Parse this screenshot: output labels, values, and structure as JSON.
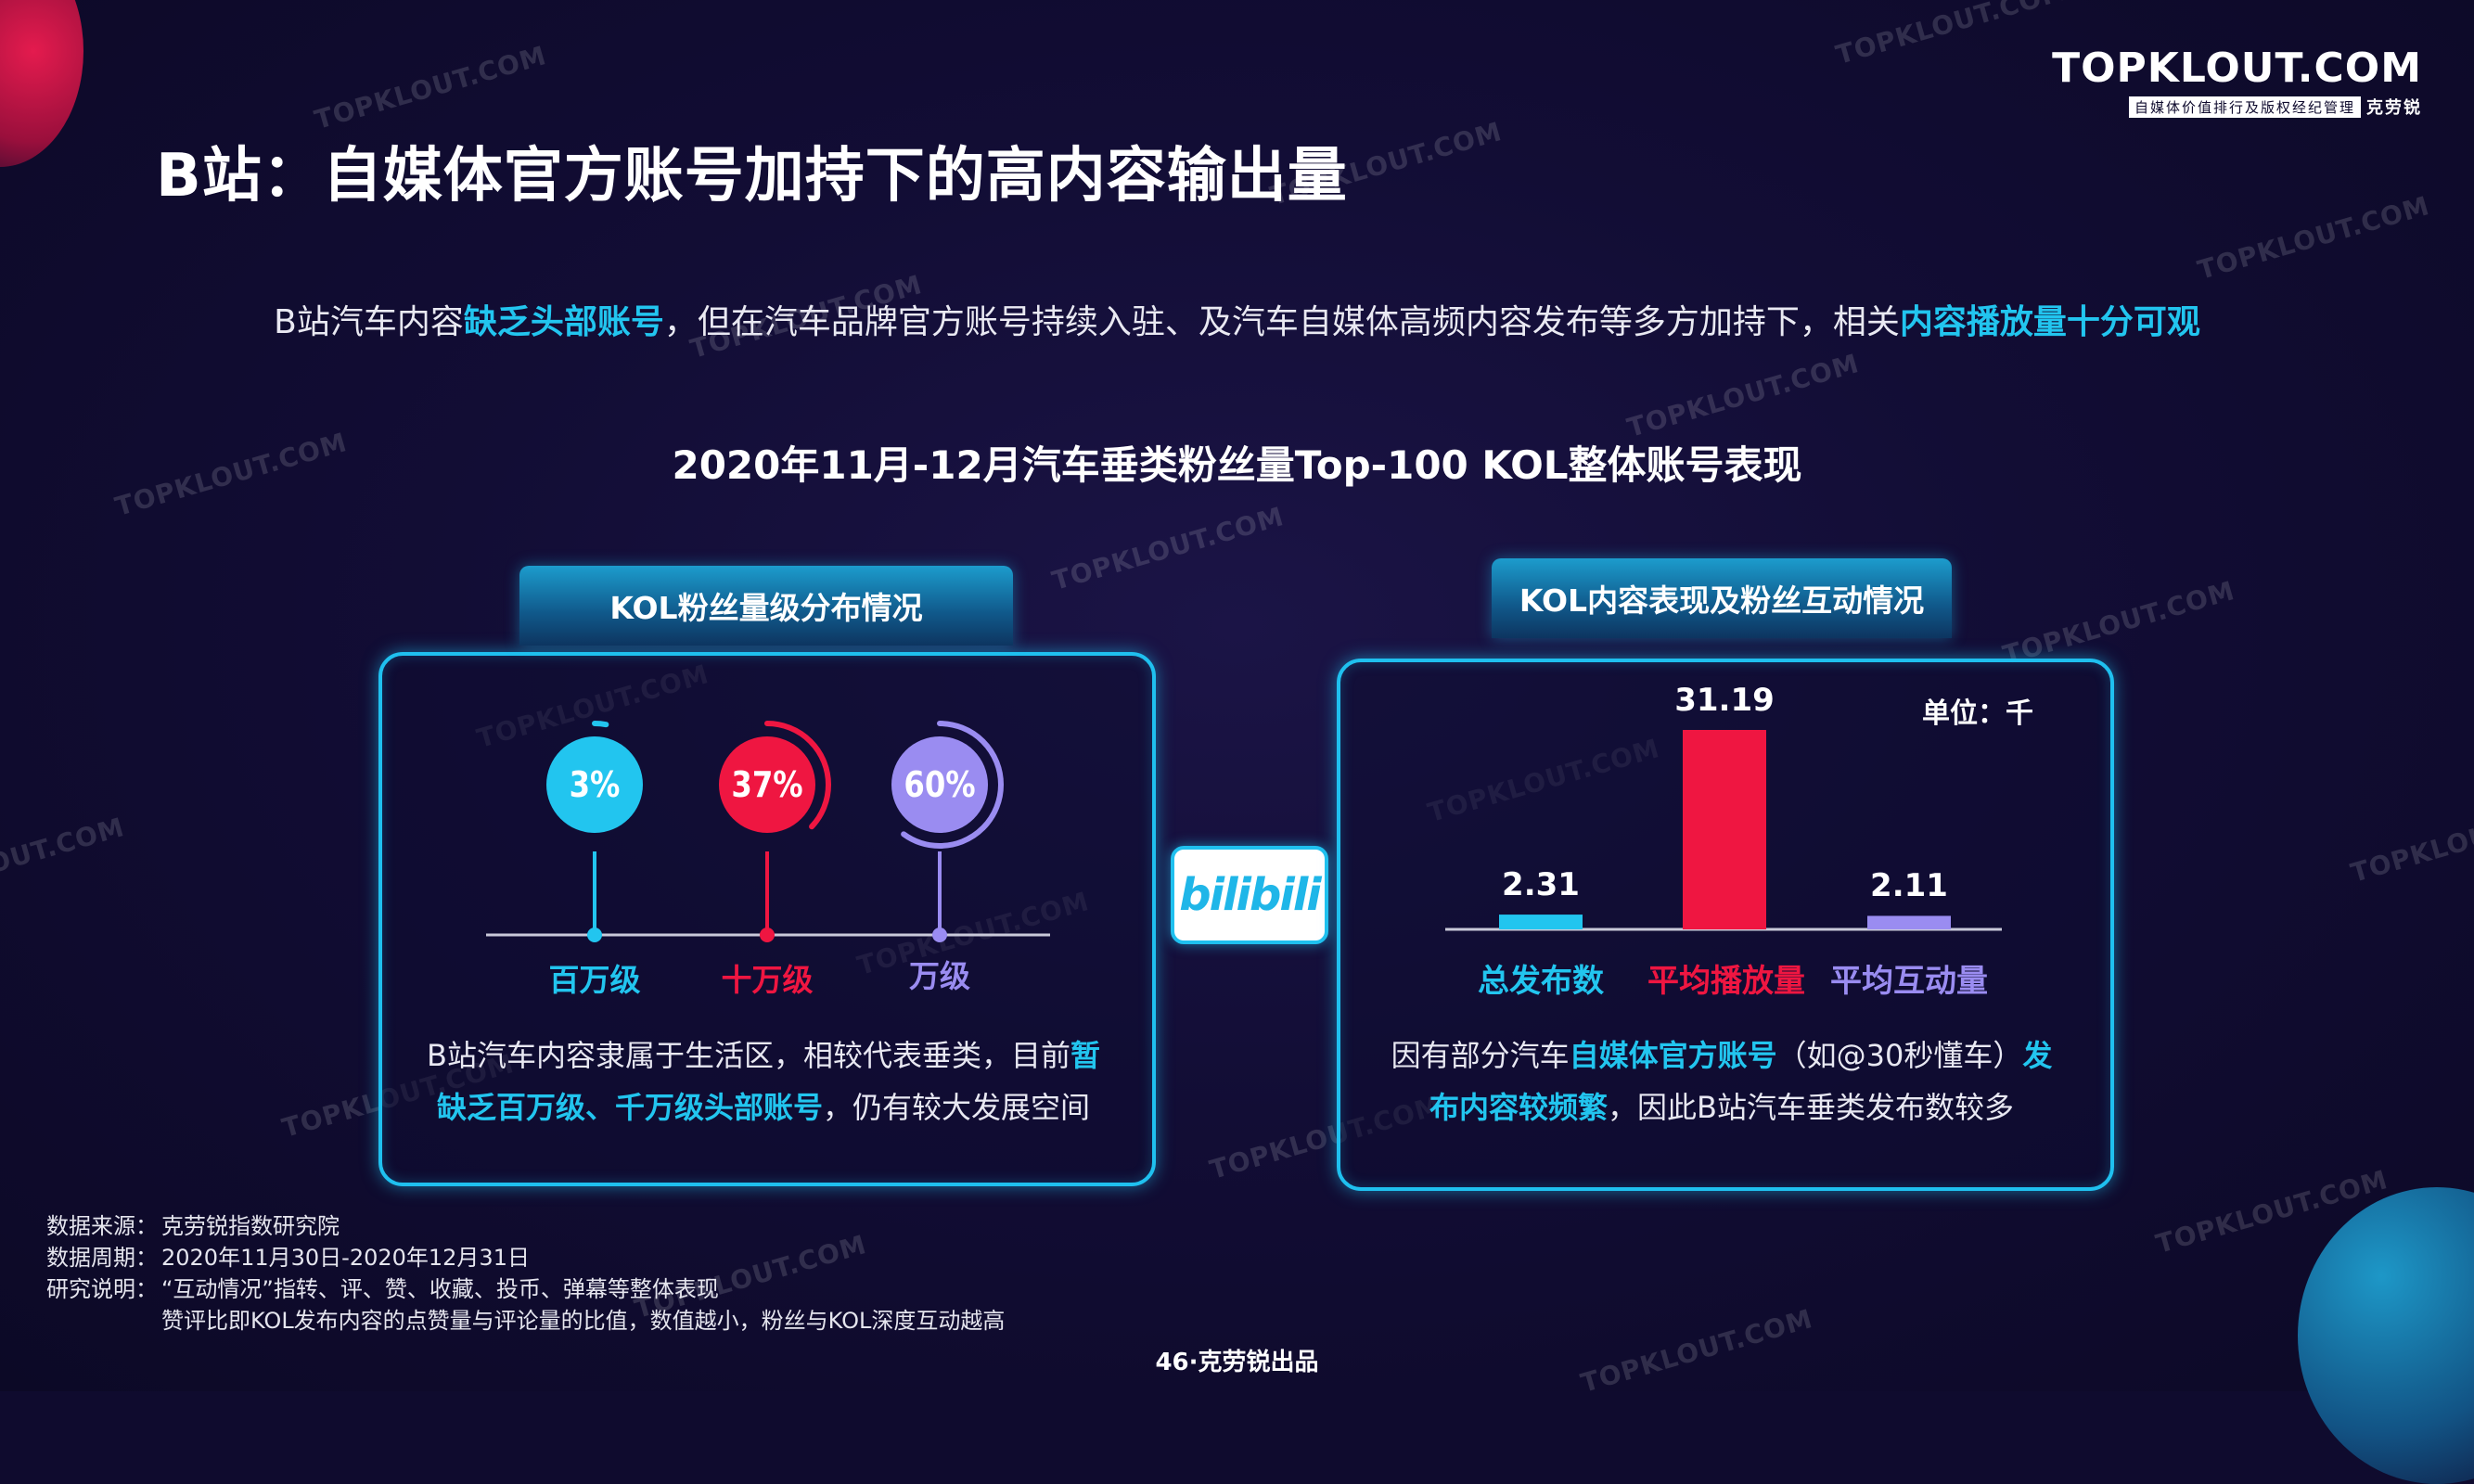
{
  "page": {
    "title": "B站：自媒体官方账号加持下的高内容输出量",
    "subtitle": {
      "p1": "B站汽车内容",
      "h1": "缺乏头部账号",
      "p2": "，但在汽车品牌官方账号持续入驻、及汽车自媒体高频内容发布等多方加持下，相关",
      "h2": "内容播放量十分可观"
    },
    "chart_heading": "2020年11月-12月汽车垂类粉丝量Top-100 KOL整体账号表现"
  },
  "logo": {
    "main": "TOPKLOUT.COM",
    "tagline": "自媒体价值排行及版权经纪管理",
    "brand": "克劳锐"
  },
  "left_panel": {
    "tab": "KOL粉丝量级分布情况",
    "text_p1": "B站汽车内容隶属于生活区，相较代表垂类，目前",
    "text_h1": "暂",
    "text_h2": "缺乏百万级、千万级头部账号",
    "text_p2": "，仍有较大发展空间"
  },
  "right_panel": {
    "tab": "KOL内容表现及粉丝互动情况",
    "unit": "单位：千",
    "text_p1": "因有部分汽车",
    "text_h1": "自媒体官方账号",
    "text_p2": "（如@30秒懂车）",
    "text_h2": "发",
    "text_h3": "布内容较频繁",
    "text_p3": "，因此B站汽车垂类发布数较多"
  },
  "bili_logo": "bilibili",
  "notes": {
    "source_k": "数据来源：",
    "source_v": "克劳锐指数研究院",
    "period_k": "数据周期：",
    "period_v": "2020年11月30日-2020年12月31日",
    "desc_k": "研究说明：",
    "desc_v1": "“互动情况”指转、评、赞、收藏、投币、弹幕等整体表现",
    "desc_v2": "赞评比即KOL发布内容的点赞量与评论量的比值，数值越小，粉丝与KOL深度互动越高"
  },
  "footer": "46·克劳锐出品",
  "watermark": "TOPKLOUT.COM",
  "colors": {
    "cyan": "#22c5ef",
    "red": "#ef1641",
    "purple": "#9a8cf1"
  },
  "chart_data": [
    {
      "type": "pie",
      "title": "KOL粉丝量级分布情况",
      "categories": [
        "百万级",
        "十万级",
        "万级"
      ],
      "values": [
        3,
        37,
        60
      ],
      "labels": [
        "3%",
        "37%",
        "60%"
      ],
      "colors": [
        "#22c5ef",
        "#ef1641",
        "#9a8cf1"
      ]
    },
    {
      "type": "bar",
      "title": "KOL内容表现及粉丝互动情况",
      "unit": "单位：千",
      "categories": [
        "总发布数",
        "平均播放量",
        "平均互动量"
      ],
      "values": [
        2.31,
        31.19,
        2.11
      ],
      "labels": [
        "2.31",
        "31.19",
        "2.11"
      ],
      "colors": [
        "#22c5ef",
        "#ef1641",
        "#9a8cf1"
      ],
      "ylim": [
        0,
        31.19
      ]
    }
  ]
}
